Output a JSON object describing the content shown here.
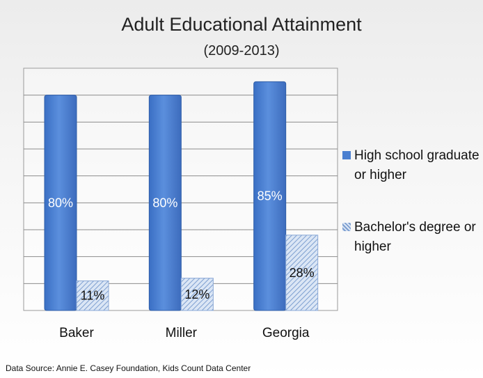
{
  "chart_data": {
    "type": "bar",
    "title": "Adult Educational Attainment",
    "subtitle": "(2009-2013)",
    "categories": [
      "Baker",
      "Miller",
      "Georgia"
    ],
    "series": [
      {
        "name": "High school graduate or higher",
        "values": [
          80,
          80,
          85
        ],
        "labels": [
          "80%",
          "80%",
          "85%"
        ],
        "color": "#4a7fd0",
        "pattern": "solid"
      },
      {
        "name": "Bachelor's degree or higher",
        "values": [
          11,
          12,
          28
        ],
        "labels": [
          "11%",
          "12%",
          "28%"
        ],
        "color": "#a9c3e6",
        "pattern": "diagonal-hatch"
      }
    ],
    "ylim": [
      0,
      90
    ],
    "grid": true,
    "legend_position": "right"
  },
  "footer": {
    "source": "Data Source: Annie E. Casey Foundation, Kids Count Data Center"
  }
}
